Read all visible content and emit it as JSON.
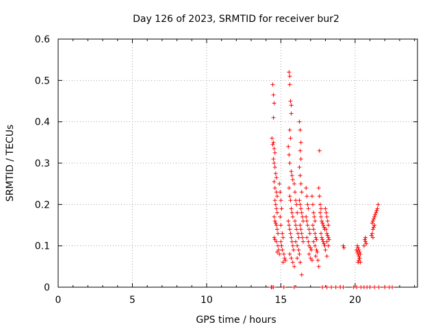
{
  "chart_data": {
    "type": "scatter",
    "title": "Day 126 of 2023, SRMTID for receiver bur2",
    "xlabel": "GPS time / hours",
    "ylabel": "SRMTID / TECUs",
    "xlim": [
      0,
      24.2
    ],
    "ylim": [
      0,
      0.6
    ],
    "xticks": [
      0,
      5,
      10,
      15,
      20
    ],
    "yticks": [
      0,
      0.1,
      0.2,
      0.3,
      0.4,
      0.5,
      0.6
    ],
    "ytick_labels": [
      "0",
      "0.1",
      "0.2",
      "0.3",
      "0.4",
      "0.5",
      "0.6"
    ],
    "grid": true,
    "marker": "plus",
    "color": "#ff0000",
    "series": [
      {
        "name": "SRMTID",
        "points": [
          [
            14.35,
            0.0
          ],
          [
            14.4,
            0.0
          ],
          [
            14.5,
            0.0
          ],
          [
            15.2,
            0.0
          ],
          [
            15.9,
            0.0
          ],
          [
            17.8,
            0.0
          ],
          [
            18.1,
            0.0
          ],
          [
            18.4,
            0.0
          ],
          [
            18.7,
            0.0
          ],
          [
            19.0,
            0.0
          ],
          [
            19.2,
            0.0
          ],
          [
            19.9,
            0.0
          ],
          [
            20.1,
            0.0
          ],
          [
            20.4,
            0.0
          ],
          [
            20.6,
            0.0
          ],
          [
            20.8,
            0.0
          ],
          [
            21.0,
            0.0
          ],
          [
            21.3,
            0.0
          ],
          [
            21.6,
            0.0
          ],
          [
            22.0,
            0.0
          ],
          [
            22.3,
            0.0
          ],
          [
            22.5,
            0.0
          ],
          [
            14.45,
            0.49
          ],
          [
            14.5,
            0.465
          ],
          [
            14.55,
            0.445
          ],
          [
            14.5,
            0.41
          ],
          [
            14.4,
            0.36
          ],
          [
            14.45,
            0.345
          ],
          [
            14.5,
            0.35
          ],
          [
            14.55,
            0.335
          ],
          [
            14.6,
            0.325
          ],
          [
            14.5,
            0.31
          ],
          [
            14.55,
            0.3
          ],
          [
            14.6,
            0.29
          ],
          [
            14.65,
            0.275
          ],
          [
            14.7,
            0.265
          ],
          [
            14.55,
            0.255
          ],
          [
            14.6,
            0.24
          ],
          [
            14.7,
            0.23
          ],
          [
            14.75,
            0.22
          ],
          [
            14.6,
            0.21
          ],
          [
            14.65,
            0.2
          ],
          [
            14.7,
            0.19
          ],
          [
            14.75,
            0.18
          ],
          [
            14.55,
            0.17
          ],
          [
            14.6,
            0.16
          ],
          [
            14.65,
            0.155
          ],
          [
            14.7,
            0.15
          ],
          [
            14.75,
            0.14
          ],
          [
            14.8,
            0.13
          ],
          [
            14.55,
            0.12
          ],
          [
            14.6,
            0.115
          ],
          [
            14.7,
            0.11
          ],
          [
            14.8,
            0.1
          ],
          [
            14.85,
            0.09
          ],
          [
            14.75,
            0.085
          ],
          [
            14.9,
            0.08
          ],
          [
            14.9,
            0.25
          ],
          [
            14.95,
            0.23
          ],
          [
            15.0,
            0.21
          ],
          [
            15.05,
            0.19
          ],
          [
            14.95,
            0.17
          ],
          [
            15.0,
            0.15
          ],
          [
            15.1,
            0.13
          ],
          [
            15.15,
            0.12
          ],
          [
            15.0,
            0.11
          ],
          [
            15.05,
            0.1
          ],
          [
            15.1,
            0.09
          ],
          [
            15.2,
            0.08
          ],
          [
            15.25,
            0.07
          ],
          [
            15.15,
            0.06
          ],
          [
            15.3,
            0.065
          ],
          [
            15.55,
            0.52
          ],
          [
            15.6,
            0.51
          ],
          [
            15.6,
            0.49
          ],
          [
            15.65,
            0.45
          ],
          [
            15.7,
            0.44
          ],
          [
            15.7,
            0.42
          ],
          [
            15.6,
            0.38
          ],
          [
            15.65,
            0.36
          ],
          [
            15.5,
            0.34
          ],
          [
            15.55,
            0.32
          ],
          [
            15.6,
            0.3
          ],
          [
            15.7,
            0.28
          ],
          [
            15.75,
            0.27
          ],
          [
            15.8,
            0.26
          ],
          [
            15.55,
            0.24
          ],
          [
            15.6,
            0.22
          ],
          [
            15.65,
            0.21
          ],
          [
            15.7,
            0.19
          ],
          [
            15.75,
            0.18
          ],
          [
            15.8,
            0.17
          ],
          [
            15.5,
            0.16
          ],
          [
            15.55,
            0.15
          ],
          [
            15.6,
            0.14
          ],
          [
            15.65,
            0.13
          ],
          [
            15.7,
            0.12
          ],
          [
            15.75,
            0.11
          ],
          [
            15.8,
            0.1
          ],
          [
            15.85,
            0.09
          ],
          [
            15.6,
            0.08
          ],
          [
            15.7,
            0.07
          ],
          [
            15.8,
            0.06
          ],
          [
            15.9,
            0.05
          ],
          [
            15.9,
            0.25
          ],
          [
            15.95,
            0.23
          ],
          [
            16.0,
            0.21
          ],
          [
            16.05,
            0.2
          ],
          [
            16.1,
            0.18
          ],
          [
            15.95,
            0.16
          ],
          [
            16.0,
            0.15
          ],
          [
            16.05,
            0.14
          ],
          [
            16.15,
            0.13
          ],
          [
            16.2,
            0.12
          ],
          [
            16.0,
            0.11
          ],
          [
            16.1,
            0.1
          ],
          [
            16.2,
            0.09
          ],
          [
            16.25,
            0.08
          ],
          [
            16.1,
            0.07
          ],
          [
            16.3,
            0.06
          ],
          [
            16.4,
            0.03
          ],
          [
            16.25,
            0.4
          ],
          [
            16.3,
            0.38
          ],
          [
            16.35,
            0.35
          ],
          [
            16.3,
            0.33
          ],
          [
            16.35,
            0.31
          ],
          [
            16.25,
            0.29
          ],
          [
            16.3,
            0.27
          ],
          [
            16.35,
            0.25
          ],
          [
            16.4,
            0.23
          ],
          [
            16.25,
            0.21
          ],
          [
            16.3,
            0.2
          ],
          [
            16.35,
            0.19
          ],
          [
            16.4,
            0.18
          ],
          [
            16.45,
            0.17
          ],
          [
            16.5,
            0.16
          ],
          [
            16.3,
            0.15
          ],
          [
            16.35,
            0.14
          ],
          [
            16.4,
            0.13
          ],
          [
            16.45,
            0.12
          ],
          [
            16.5,
            0.11
          ],
          [
            16.7,
            0.24
          ],
          [
            16.75,
            0.22
          ],
          [
            16.8,
            0.2
          ],
          [
            16.85,
            0.19
          ],
          [
            16.7,
            0.17
          ],
          [
            16.75,
            0.16
          ],
          [
            16.8,
            0.15
          ],
          [
            16.9,
            0.14
          ],
          [
            16.95,
            0.13
          ],
          [
            16.75,
            0.12
          ],
          [
            16.85,
            0.11
          ],
          [
            16.9,
            0.1
          ],
          [
            17.0,
            0.095
          ],
          [
            17.05,
            0.09
          ],
          [
            16.9,
            0.08
          ],
          [
            17.0,
            0.07
          ],
          [
            17.1,
            0.065
          ],
          [
            17.1,
            0.22
          ],
          [
            17.15,
            0.2
          ],
          [
            17.2,
            0.18
          ],
          [
            17.25,
            0.17
          ],
          [
            17.3,
            0.16
          ],
          [
            17.15,
            0.15
          ],
          [
            17.2,
            0.14
          ],
          [
            17.3,
            0.13
          ],
          [
            17.35,
            0.12
          ],
          [
            17.4,
            0.115
          ],
          [
            17.2,
            0.11
          ],
          [
            17.3,
            0.1
          ],
          [
            17.4,
            0.09
          ],
          [
            17.45,
            0.085
          ],
          [
            17.35,
            0.075
          ],
          [
            17.5,
            0.065
          ],
          [
            17.55,
            0.05
          ],
          [
            17.6,
            0.33
          ],
          [
            17.55,
            0.24
          ],
          [
            17.6,
            0.22
          ],
          [
            17.65,
            0.2
          ],
          [
            17.7,
            0.19
          ],
          [
            17.65,
            0.18
          ],
          [
            17.7,
            0.17
          ],
          [
            17.75,
            0.16
          ],
          [
            17.8,
            0.155
          ],
          [
            17.85,
            0.15
          ],
          [
            17.9,
            0.145
          ],
          [
            17.95,
            0.14
          ],
          [
            17.7,
            0.13
          ],
          [
            17.75,
            0.12
          ],
          [
            17.8,
            0.115
          ],
          [
            17.85,
            0.11
          ],
          [
            17.9,
            0.105
          ],
          [
            17.95,
            0.1
          ],
          [
            18.0,
            0.09
          ],
          [
            18.1,
            0.075
          ],
          [
            18.0,
            0.19
          ],
          [
            18.05,
            0.18
          ],
          [
            18.1,
            0.17
          ],
          [
            18.15,
            0.16
          ],
          [
            18.2,
            0.15
          ],
          [
            18.05,
            0.14
          ],
          [
            18.1,
            0.13
          ],
          [
            18.15,
            0.125
          ],
          [
            18.2,
            0.12
          ],
          [
            18.25,
            0.115
          ],
          [
            18.1,
            0.11
          ],
          [
            18.2,
            0.1
          ],
          [
            19.2,
            0.1
          ],
          [
            19.25,
            0.095
          ],
          [
            20.1,
            0.09
          ],
          [
            20.15,
            0.085
          ],
          [
            20.2,
            0.08
          ],
          [
            20.25,
            0.075
          ],
          [
            20.3,
            0.07
          ],
          [
            20.15,
            0.1
          ],
          [
            20.2,
            0.095
          ],
          [
            20.25,
            0.09
          ],
          [
            20.3,
            0.085
          ],
          [
            20.35,
            0.08
          ],
          [
            20.25,
            0.065
          ],
          [
            20.35,
            0.06
          ],
          [
            20.2,
            0.06
          ],
          [
            20.3,
            0.07
          ],
          [
            20.65,
            0.115
          ],
          [
            20.7,
            0.11
          ],
          [
            20.75,
            0.105
          ],
          [
            20.6,
            0.1
          ],
          [
            20.7,
            0.12
          ],
          [
            21.1,
            0.125
          ],
          [
            21.15,
            0.13
          ],
          [
            21.2,
            0.14
          ],
          [
            21.25,
            0.145
          ],
          [
            21.3,
            0.15
          ],
          [
            21.15,
            0.155
          ],
          [
            21.2,
            0.16
          ],
          [
            21.25,
            0.165
          ],
          [
            21.3,
            0.17
          ],
          [
            21.35,
            0.175
          ],
          [
            21.4,
            0.18
          ],
          [
            21.45,
            0.185
          ],
          [
            21.5,
            0.19
          ],
          [
            21.55,
            0.2
          ],
          [
            21.2,
            0.12
          ]
        ]
      }
    ]
  }
}
